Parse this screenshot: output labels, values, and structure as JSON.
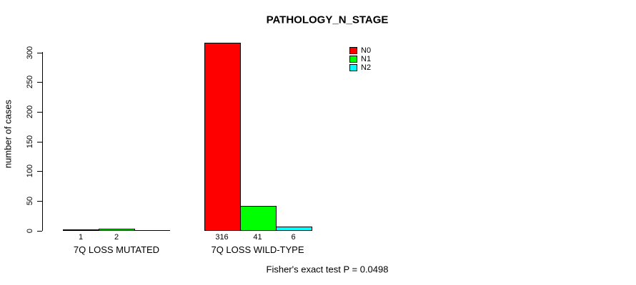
{
  "title": "PATHOLOGY_N_STAGE",
  "y_axis_label": "number of cases",
  "footnote": "Fisher's exact test P = 0.0498",
  "chart_data": {
    "type": "bar",
    "title": "PATHOLOGY_N_STAGE",
    "xlabel": "",
    "ylabel": "number of cases",
    "ylim": [
      0,
      300
    ],
    "yticks": [
      0,
      50,
      100,
      150,
      200,
      250,
      300
    ],
    "grid": false,
    "legend_position": "top-right-inside",
    "series": [
      {
        "name": "N0",
        "color": "#ff0000"
      },
      {
        "name": "N1",
        "color": "#00ff00"
      },
      {
        "name": "N2",
        "color": "#00ffff"
      }
    ],
    "categories": [
      "7Q LOSS MUTATED",
      "7Q LOSS WILD-TYPE"
    ],
    "groups": [
      {
        "label": "7Q LOSS MUTATED",
        "values": [
          1,
          2,
          0
        ],
        "value_labels": [
          "1",
          "2",
          ""
        ]
      },
      {
        "label": "7Q LOSS WILD-TYPE",
        "values": [
          316,
          41,
          6
        ],
        "value_labels": [
          "316",
          "41",
          "6"
        ]
      }
    ],
    "annotation": "Fisher's exact test P = 0.0498"
  }
}
